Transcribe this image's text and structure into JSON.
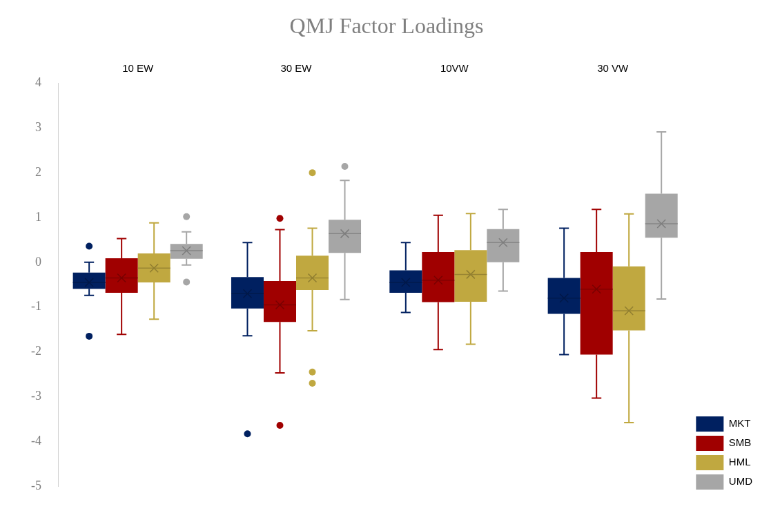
{
  "chart_data": {
    "type": "box",
    "title": "QMJ Factor Loadings",
    "categories": [
      "10 EW",
      "30 EW",
      "10VW",
      "30 VW"
    ],
    "ylim": [
      -5,
      4
    ],
    "yticks": [
      -5,
      -4,
      -3,
      -2,
      -1,
      0,
      1,
      2,
      3,
      4
    ],
    "grid": false,
    "legend": "bottom right",
    "marker": "cross",
    "series": [
      {
        "name": "MKT",
        "color": "#002060",
        "boxes": [
          {
            "low": -0.74,
            "q1": -0.59,
            "median": -0.45,
            "q3": -0.23,
            "high": 0.0,
            "mean": -0.45,
            "outliers": [
              0.36,
              -1.65
            ]
          },
          {
            "low": -1.64,
            "q1": -1.03,
            "median": -0.7,
            "q3": -0.33,
            "high": 0.44,
            "mean": -0.7,
            "outliers": [
              -3.83
            ]
          },
          {
            "low": -1.12,
            "q1": -0.68,
            "median": -0.45,
            "q3": -0.18,
            "high": 0.44,
            "mean": -0.45
          },
          {
            "low": -2.06,
            "q1": -1.15,
            "median": -0.8,
            "q3": -0.35,
            "high": 0.76,
            "mean": -0.8
          }
        ]
      },
      {
        "name": "SMB",
        "color": "#a00000",
        "boxes": [
          {
            "low": -1.61,
            "q1": -0.68,
            "median": -0.35,
            "q3": 0.09,
            "high": 0.53,
            "mean": -0.35
          },
          {
            "low": -2.47,
            "q1": -1.33,
            "median": -0.95,
            "q3": -0.42,
            "high": 0.73,
            "mean": -0.95,
            "outliers": [
              0.98,
              -3.64
            ]
          },
          {
            "low": -1.95,
            "q1": -0.89,
            "median": -0.4,
            "q3": 0.23,
            "high": 1.05,
            "mean": -0.4
          },
          {
            "low": -3.03,
            "q1": -2.06,
            "median": -0.6,
            "q3": 0.23,
            "high": 1.18,
            "mean": -0.6
          }
        ]
      },
      {
        "name": "HML",
        "color": "#c0a840",
        "boxes": [
          {
            "low": -1.27,
            "q1": -0.45,
            "median": -0.13,
            "q3": 0.2,
            "high": 0.88,
            "mean": -0.13
          },
          {
            "low": -1.53,
            "q1": -0.62,
            "median": -0.35,
            "q3": 0.15,
            "high": 0.76,
            "mean": -0.35,
            "outliers": [
              2.0,
              -2.45,
              -2.7
            ]
          },
          {
            "low": -1.83,
            "q1": -0.88,
            "median": -0.27,
            "q3": 0.27,
            "high": 1.09,
            "mean": -0.27
          },
          {
            "low": -3.58,
            "q1": -1.52,
            "median": -1.08,
            "q3": -0.09,
            "high": 1.08,
            "mean": -1.08
          }
        ]
      },
      {
        "name": "UMD",
        "color": "#a6a6a6",
        "boxes": [
          {
            "low": -0.06,
            "q1": 0.08,
            "median": 0.26,
            "q3": 0.41,
            "high": 0.68,
            "mean": 0.26,
            "outliers": [
              1.02,
              -0.44
            ]
          },
          {
            "low": -0.83,
            "q1": 0.21,
            "median": 0.64,
            "q3": 0.95,
            "high": 1.83,
            "mean": 0.64,
            "outliers": [
              2.14
            ]
          },
          {
            "low": -0.64,
            "q1": 0.0,
            "median": 0.44,
            "q3": 0.74,
            "high": 1.18,
            "mean": 0.44
          },
          {
            "low": -0.82,
            "q1": 0.55,
            "median": 0.86,
            "q3": 1.53,
            "high": 2.91,
            "mean": 0.86
          }
        ]
      }
    ]
  }
}
